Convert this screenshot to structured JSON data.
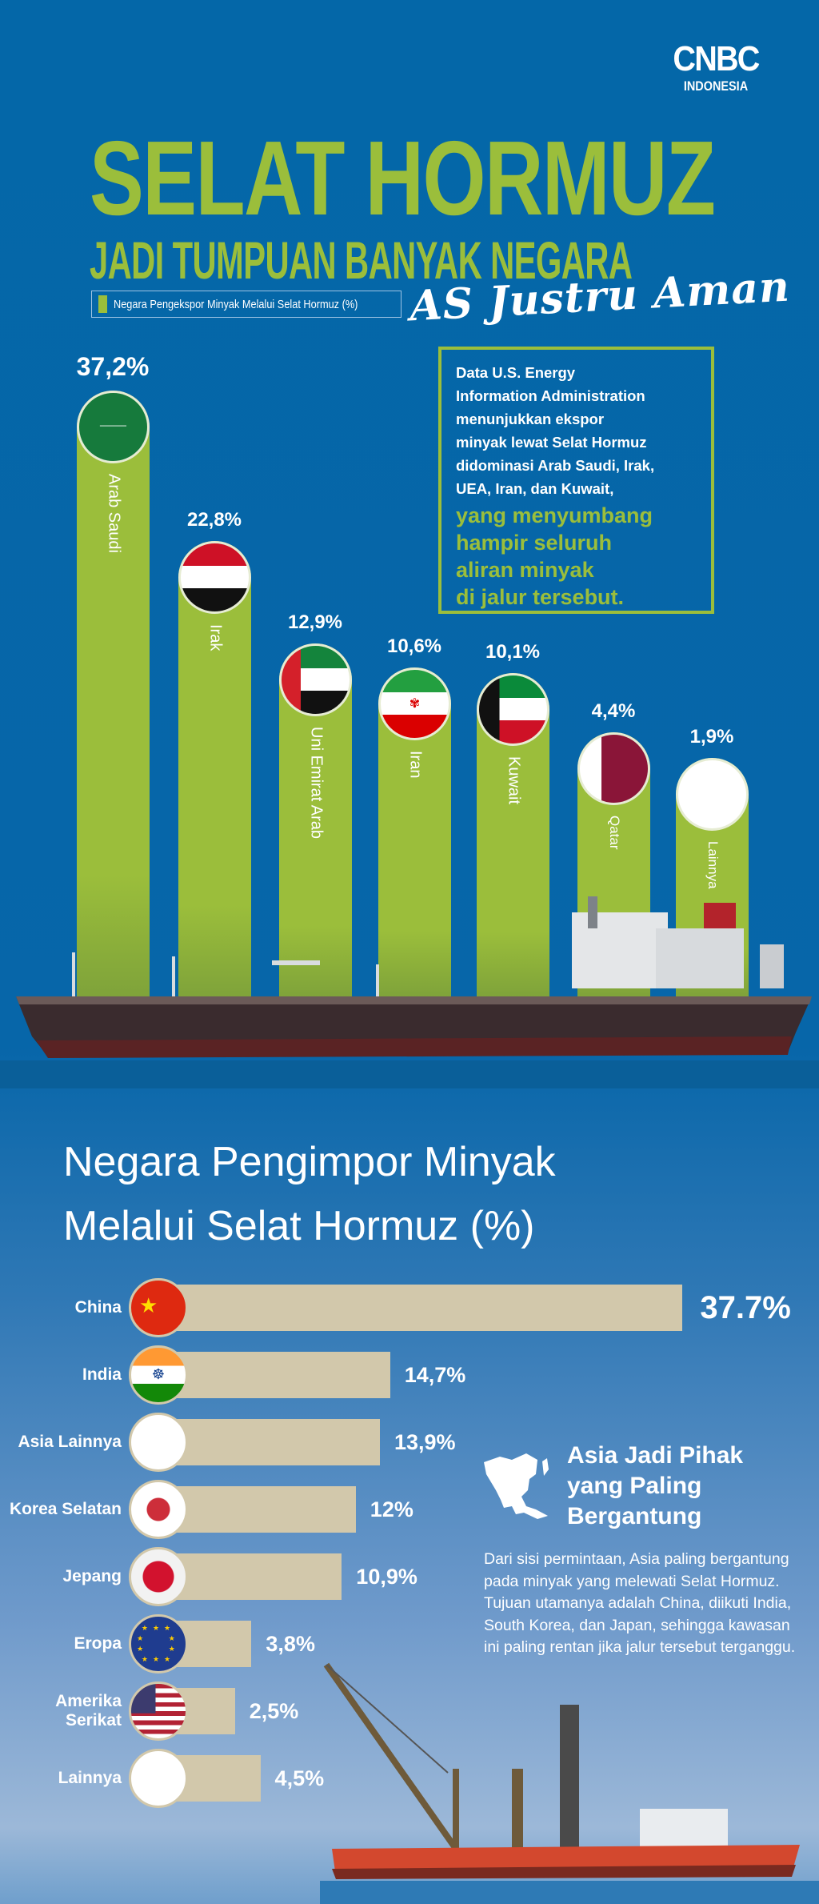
{
  "brand": {
    "line1": "CNBC",
    "line2": "INDONESIA"
  },
  "header": {
    "title": "SELAT HORMUZ",
    "subtitle": "JADI TUMPUAN BANYAK NEGARA",
    "handwritten": "AS Justru Aman",
    "legend": "Negara Pengekspor Minyak Melalui Selat Hormuz (%)"
  },
  "info": {
    "white_lines": [
      "Data U.S. Energy",
      "Information Administration",
      "menunjukkan ekspor",
      "minyak lewat Selat Hormuz",
      "didominasi Arab Saudi, Irak,",
      "UEA, Iran, dan Kuwait,"
    ],
    "green_lines": [
      "yang menyumbang",
      "hampir seluruh",
      "aliran minyak",
      "di jalur tersebut."
    ]
  },
  "colors": {
    "bg": "#0467a8",
    "green": "#9bbe3b",
    "beige": "#d2c8ab"
  },
  "chart_data": [
    {
      "type": "bar",
      "orientation": "vertical",
      "title": "Negara Pengekspor Minyak Melalui Selat Hormuz (%)",
      "categories": [
        "Arab Saudi",
        "Irak",
        "Uni Emirat Arab",
        "Iran",
        "Kuwait",
        "Qatar",
        "Lainnya"
      ],
      "values": [
        37.2,
        22.8,
        12.9,
        10.6,
        10.1,
        4.4,
        1.9
      ],
      "labels": [
        "37,2%",
        "22,8%",
        "12,9%",
        "10,6%",
        "10,1%",
        "4,4%",
        "1,9%"
      ],
      "flags": [
        "saudi",
        "iraq",
        "uae",
        "iran",
        "kuwait",
        "qatar",
        "blank"
      ]
    },
    {
      "type": "bar",
      "orientation": "horizontal",
      "title": "Negara Pengimpor Minyak Melalui Selat Hormuz (%)",
      "categories": [
        "China",
        "India",
        "Asia Lainnya",
        "Korea Selatan",
        "Jepang",
        "Eropa",
        "Amerika Serikat",
        "Lainnya"
      ],
      "values": [
        37.7,
        14.7,
        13.9,
        12,
        10.9,
        3.8,
        2.5,
        4.5
      ],
      "labels": [
        "37.7%",
        "14,7%",
        "13,9%",
        "12%",
        "10,9%",
        "3,8%",
        "2,5%",
        "4,5%"
      ],
      "flags": [
        "china",
        "india",
        "blank",
        "korea",
        "japan",
        "eu",
        "usa",
        "blank"
      ]
    }
  ],
  "import_heading": [
    "Negara Pengimpor Minyak",
    "Melalui Selat Hormuz (%)"
  ],
  "asia": {
    "title_lines": [
      "Asia Jadi Pihak",
      "yang Paling",
      "Bergantung"
    ],
    "body": "Dari sisi permintaan, Asia paling bergantung pada minyak yang melewati Selat Hormuz. Tujuan utamanya adalah China, diikuti India, South Korea, dan Japan, sehingga kawasan ini paling rentan jika jalur tersebut terganggu."
  }
}
